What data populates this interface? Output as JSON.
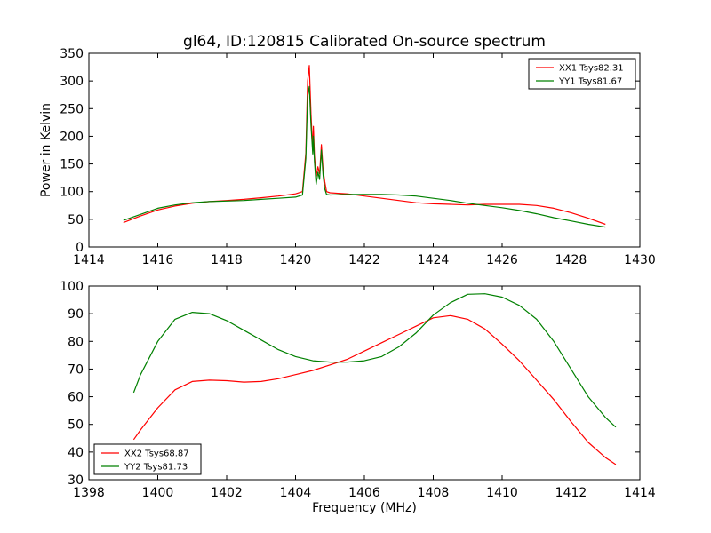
{
  "chart_data": [
    {
      "type": "line",
      "title": "gl64, ID:120815 Calibrated On-source spectrum",
      "xlabel": "",
      "ylabel": "Power in Kelvin",
      "xlim": [
        1414,
        1430
      ],
      "ylim": [
        0,
        350
      ],
      "xticks": [
        1414,
        1416,
        1418,
        1420,
        1422,
        1424,
        1426,
        1428,
        1430
      ],
      "yticks": [
        0,
        50,
        100,
        150,
        200,
        250,
        300,
        350
      ],
      "legend": "top-right",
      "series": [
        {
          "name": "XX1 Tsys82.31",
          "color": "#ff0000",
          "x": [
            1415,
            1415.5,
            1416,
            1416.5,
            1417,
            1417.5,
            1418,
            1418.5,
            1419,
            1419.5,
            1420,
            1420.2,
            1420.3,
            1420.35,
            1420.4,
            1420.45,
            1420.5,
            1420.52,
            1420.55,
            1420.6,
            1420.65,
            1420.7,
            1420.75,
            1420.8,
            1420.85,
            1420.9,
            1421,
            1421.5,
            1422,
            1422.5,
            1423,
            1423.5,
            1424,
            1424.5,
            1425,
            1425.5,
            1426,
            1426.5,
            1427,
            1427.5,
            1428,
            1428.5,
            1429
          ],
          "y": [
            44,
            56,
            67,
            74,
            79,
            82,
            84,
            86,
            89,
            92,
            96,
            100,
            170,
            300,
            328,
            240,
            175,
            218,
            165,
            128,
            145,
            132,
            185,
            140,
            118,
            100,
            98,
            96,
            92,
            88,
            84,
            80,
            78,
            77,
            76,
            77,
            77,
            77,
            75,
            70,
            62,
            52,
            41
          ]
        },
        {
          "name": "YY1 Tsys81.67",
          "color": "#008000",
          "x": [
            1415,
            1415.5,
            1416,
            1416.5,
            1417,
            1417.5,
            1418,
            1418.5,
            1419,
            1419.5,
            1420,
            1420.2,
            1420.3,
            1420.35,
            1420.4,
            1420.45,
            1420.5,
            1420.52,
            1420.55,
            1420.6,
            1420.65,
            1420.7,
            1420.75,
            1420.8,
            1420.85,
            1420.9,
            1421,
            1421.5,
            1422,
            1422.5,
            1423,
            1423.5,
            1424,
            1424.5,
            1425,
            1425.5,
            1426,
            1426.5,
            1427,
            1427.5,
            1428,
            1428.5,
            1429
          ],
          "y": [
            48,
            59,
            70,
            76,
            80,
            82,
            83,
            84,
            86,
            88,
            90,
            94,
            160,
            272,
            290,
            220,
            168,
            200,
            155,
            113,
            135,
            122,
            175,
            130,
            105,
            95,
            94,
            95,
            95,
            95,
            94,
            92,
            88,
            84,
            79,
            75,
            71,
            66,
            60,
            53,
            47,
            41,
            36
          ]
        }
      ]
    },
    {
      "type": "line",
      "title": "",
      "xlabel": "Frequency (MHz)",
      "ylabel": "",
      "xlim": [
        1398,
        1414
      ],
      "ylim": [
        30,
        100
      ],
      "xticks": [
        1398,
        1400,
        1402,
        1404,
        1406,
        1408,
        1410,
        1412,
        1414
      ],
      "yticks": [
        30,
        40,
        50,
        60,
        70,
        80,
        90,
        100
      ],
      "legend": "bottom-left",
      "series": [
        {
          "name": "XX2 Tsys68.87",
          "color": "#ff0000",
          "x": [
            1399.3,
            1399.5,
            1400,
            1400.5,
            1401,
            1401.5,
            1402,
            1402.5,
            1403,
            1403.5,
            1404,
            1404.5,
            1405,
            1405.5,
            1406,
            1406.5,
            1407,
            1407.5,
            1408,
            1408.5,
            1409,
            1409.5,
            1410,
            1410.5,
            1411,
            1411.5,
            1412,
            1412.5,
            1413,
            1413.3
          ],
          "y": [
            44.5,
            48,
            56,
            62.5,
            65.5,
            66,
            65.8,
            65.3,
            65.5,
            66.5,
            68,
            69.5,
            71.5,
            73.5,
            76.5,
            79.5,
            82.5,
            85.5,
            88.5,
            89.3,
            88,
            84.5,
            79,
            73,
            66,
            59,
            51,
            43.5,
            38,
            35.5
          ]
        },
        {
          "name": "YY2 Tsys81.73",
          "color": "#008000",
          "x": [
            1399.3,
            1399.5,
            1400,
            1400.5,
            1401,
            1401.5,
            1402,
            1402.5,
            1403,
            1403.5,
            1404,
            1404.5,
            1405,
            1405.5,
            1406,
            1406.5,
            1407,
            1407.5,
            1408,
            1408.5,
            1409,
            1409.5,
            1410,
            1410.5,
            1411,
            1411.5,
            1412,
            1412.5,
            1413,
            1413.3
          ],
          "y": [
            61.5,
            68,
            80,
            88,
            90.5,
            90,
            87.5,
            84,
            80.5,
            77,
            74.5,
            73,
            72.5,
            72.5,
            73,
            74.5,
            78,
            83,
            89.5,
            94,
            97,
            97.2,
            96,
            93,
            88,
            80,
            70,
            60,
            52.5,
            49
          ]
        }
      ]
    }
  ]
}
